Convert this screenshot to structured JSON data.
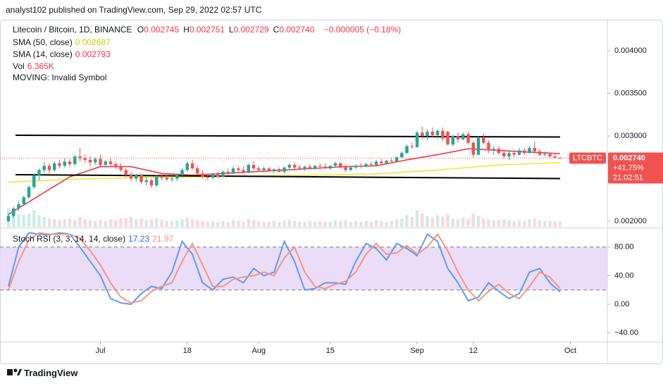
{
  "header": {
    "byline": "analyst102 published on TradingView.com, Sep 29, 2022 02:57 UTC"
  },
  "footer": {
    "brand": "TradingView"
  },
  "chart_data": [
    {
      "type": "candlestick",
      "title": "Litecoin / Bitcoin, 1D, BINANCE",
      "ohlc_legend": [
        {
          "key": "O",
          "value": "0.002745"
        },
        {
          "key": "H",
          "value": "0.002751"
        },
        {
          "key": "L",
          "value": "0.002729"
        },
        {
          "key": "C",
          "value": "0.002740"
        }
      ],
      "change": "−0.000005 (−0.18%)",
      "indicators": [
        {
          "name": "SMA (50, close)",
          "value": "0.002687"
        },
        {
          "name": "SMA (14, close)",
          "value": "0.002793"
        },
        {
          "name": "Vol",
          "value": "6.365K"
        },
        {
          "name": "MOVING: Invalid Symbol"
        }
      ],
      "badges": {
        "symbol": "LTCBTC",
        "price": "0.002740",
        "change": "+41.75%",
        "countdown": "21:02:51"
      },
      "up_color": "#26a69a",
      "down_color": "#ef5350",
      "open": [
        0.002,
        0.00206,
        0.00215,
        0.0022,
        0.00228,
        0.0024,
        0.00254,
        0.0026,
        0.00265,
        0.0026,
        0.00268,
        0.00265,
        0.0027,
        0.00267,
        0.00276,
        0.00274,
        0.00272,
        0.00269,
        0.00273,
        0.00266,
        0.0027,
        0.00267,
        0.00264,
        0.0026,
        0.00255,
        0.0025,
        0.00254,
        0.00246,
        0.00248,
        0.00242,
        0.00252,
        0.00251,
        0.00249,
        0.0025,
        0.00254,
        0.0026,
        0.00268,
        0.00262,
        0.00256,
        0.00252,
        0.00251,
        0.00255,
        0.00252,
        0.00258,
        0.00256,
        0.00262,
        0.0026,
        0.00258,
        0.00266,
        0.00262,
        0.0026,
        0.00262,
        0.00259,
        0.00261,
        0.00258,
        0.00263,
        0.00266,
        0.00263,
        0.00262,
        0.00264,
        0.00262,
        0.00265,
        0.00264,
        0.00262,
        0.00265,
        0.00268,
        0.00264,
        0.0026,
        0.00263,
        0.00265,
        0.00264,
        0.00267,
        0.00266,
        0.0027,
        0.00268,
        0.00271,
        0.0027,
        0.00275,
        0.0028,
        0.00288,
        0.00287,
        0.00304,
        0.003,
        0.00305,
        0.00301,
        0.00306,
        0.00305,
        0.0029,
        0.003,
        0.00296,
        0.00302,
        0.00292,
        0.00278,
        0.00298,
        0.00292,
        0.00283,
        0.00285,
        0.0028,
        0.00276,
        0.0028,
        0.00278,
        0.00283,
        0.0028,
        0.00286,
        0.00282,
        0.00278,
        0.00279,
        0.00276,
        0.002745
      ],
      "high": [
        0.00209,
        0.00217,
        0.00223,
        0.0023,
        0.00242,
        0.00256,
        0.00262,
        0.0027,
        0.00268,
        0.0027,
        0.00272,
        0.00274,
        0.00273,
        0.00278,
        0.00286,
        0.00278,
        0.00276,
        0.00275,
        0.00278,
        0.00272,
        0.00274,
        0.0027,
        0.00268,
        0.00262,
        0.00258,
        0.00256,
        0.00256,
        0.00252,
        0.0025,
        0.00254,
        0.00256,
        0.00254,
        0.00253,
        0.00256,
        0.00262,
        0.0027,
        0.00272,
        0.00265,
        0.0026,
        0.00256,
        0.00257,
        0.00258,
        0.0026,
        0.00262,
        0.00264,
        0.00265,
        0.00264,
        0.00268,
        0.0027,
        0.00265,
        0.00264,
        0.00264,
        0.00262,
        0.00263,
        0.00264,
        0.00268,
        0.00269,
        0.00266,
        0.00265,
        0.00267,
        0.00266,
        0.00268,
        0.00268,
        0.00266,
        0.0027,
        0.00269,
        0.00266,
        0.00265,
        0.00267,
        0.00268,
        0.00269,
        0.0027,
        0.00272,
        0.00273,
        0.00272,
        0.00274,
        0.00276,
        0.00282,
        0.0029,
        0.00292,
        0.00306,
        0.00311,
        0.00308,
        0.0031,
        0.00308,
        0.0031,
        0.00306,
        0.00302,
        0.00304,
        0.00304,
        0.00305,
        0.00294,
        0.003,
        0.00303,
        0.00295,
        0.00288,
        0.00288,
        0.00284,
        0.00282,
        0.00283,
        0.00286,
        0.00286,
        0.00288,
        0.00294,
        0.00285,
        0.00282,
        0.0028,
        0.00279,
        0.002751
      ],
      "low": [
        0.00199,
        0.00204,
        0.00212,
        0.00218,
        0.00226,
        0.00238,
        0.00248,
        0.00256,
        0.00256,
        0.00258,
        0.00262,
        0.00263,
        0.00264,
        0.00265,
        0.0027,
        0.00268,
        0.00265,
        0.00266,
        0.00263,
        0.00264,
        0.00265,
        0.00261,
        0.00258,
        0.00252,
        0.00247,
        0.00246,
        0.00244,
        0.00242,
        0.00239,
        0.0024,
        0.00248,
        0.00247,
        0.00246,
        0.00247,
        0.00251,
        0.00258,
        0.0026,
        0.00254,
        0.0025,
        0.00248,
        0.00249,
        0.0025,
        0.00251,
        0.00254,
        0.00255,
        0.00257,
        0.00256,
        0.00256,
        0.0026,
        0.00258,
        0.00257,
        0.00258,
        0.00256,
        0.00257,
        0.00256,
        0.0026,
        0.00261,
        0.0026,
        0.00259,
        0.00261,
        0.0026,
        0.00262,
        0.00261,
        0.0026,
        0.00263,
        0.00262,
        0.00258,
        0.00259,
        0.00261,
        0.00262,
        0.00263,
        0.00264,
        0.00265,
        0.00266,
        0.00267,
        0.00268,
        0.00269,
        0.00274,
        0.00279,
        0.00285,
        0.00286,
        0.00296,
        0.00295,
        0.00298,
        0.00296,
        0.00294,
        0.00289,
        0.00288,
        0.00292,
        0.00295,
        0.0029,
        0.00274,
        0.00277,
        0.0029,
        0.0028,
        0.00278,
        0.00278,
        0.00274,
        0.00272,
        0.00275,
        0.00277,
        0.00278,
        0.00279,
        0.0028,
        0.00276,
        0.00276,
        0.00274,
        0.00274,
        0.002729
      ],
      "close": [
        0.00206,
        0.00215,
        0.0022,
        0.00228,
        0.0024,
        0.00254,
        0.0026,
        0.00265,
        0.0026,
        0.00268,
        0.00265,
        0.0027,
        0.00267,
        0.00276,
        0.00274,
        0.00272,
        0.00269,
        0.00273,
        0.00266,
        0.0027,
        0.00267,
        0.00264,
        0.0026,
        0.00255,
        0.0025,
        0.00254,
        0.00246,
        0.00248,
        0.00242,
        0.00252,
        0.00251,
        0.00249,
        0.0025,
        0.00254,
        0.0026,
        0.00268,
        0.00262,
        0.00256,
        0.00252,
        0.00251,
        0.00255,
        0.00252,
        0.00258,
        0.00256,
        0.00262,
        0.0026,
        0.00258,
        0.00266,
        0.00262,
        0.0026,
        0.00262,
        0.00259,
        0.00261,
        0.00258,
        0.00263,
        0.00266,
        0.00263,
        0.00262,
        0.00264,
        0.00262,
        0.00265,
        0.00264,
        0.00262,
        0.00265,
        0.00268,
        0.00264,
        0.0026,
        0.00263,
        0.00265,
        0.00264,
        0.00267,
        0.00266,
        0.0027,
        0.00268,
        0.00271,
        0.0027,
        0.00275,
        0.0028,
        0.00288,
        0.00287,
        0.00304,
        0.003,
        0.00305,
        0.00301,
        0.00306,
        0.00297,
        0.0029,
        0.003,
        0.00296,
        0.00302,
        0.00292,
        0.00278,
        0.00298,
        0.00292,
        0.00283,
        0.00285,
        0.0028,
        0.00276,
        0.0028,
        0.00278,
        0.00283,
        0.0028,
        0.00286,
        0.00282,
        0.00278,
        0.00279,
        0.00276,
        0.002745,
        0.00274
      ],
      "volume": [
        22,
        18,
        15,
        14,
        16,
        20,
        14,
        12,
        10,
        9,
        8,
        9,
        10,
        8,
        12,
        9,
        8,
        7,
        8,
        7,
        9,
        8,
        10,
        11,
        12,
        9,
        10,
        8,
        9,
        10,
        8,
        7,
        7,
        8,
        9,
        11,
        9,
        8,
        7,
        6,
        7,
        6,
        7,
        6,
        8,
        7,
        6,
        9,
        8,
        7,
        6,
        6,
        7,
        6,
        7,
        8,
        7,
        6,
        6,
        7,
        6,
        7,
        6,
        6,
        8,
        7,
        8,
        6,
        7,
        6,
        7,
        6,
        8,
        7,
        6,
        7,
        9,
        10,
        14,
        12,
        20,
        16,
        13,
        11,
        14,
        12,
        15,
        10,
        9,
        11,
        9,
        16,
        13,
        10,
        9,
        8,
        8,
        9,
        8,
        7,
        8,
        7,
        9,
        10,
        8,
        7,
        7,
        6,
        6.365
      ],
      "series": [
        {
          "name": "SMA (50, close)",
          "color": "#f5e53b",
          "x": [
            0,
            12,
            24,
            36,
            48,
            60,
            72,
            84,
            96,
            108
          ],
          "values": [
            0.00246,
            0.00249,
            0.00251,
            0.00252,
            0.00253,
            0.00254,
            0.002555,
            0.0026,
            0.00266,
            0.002687
          ]
        },
        {
          "name": "SMA (14, close)",
          "color": "#f23645",
          "x": [
            0,
            6,
            12,
            18,
            24,
            30,
            36,
            42,
            48,
            54,
            60,
            66,
            72,
            78,
            84,
            90,
            96,
            102,
            108
          ],
          "values": [
            0.00208,
            0.0023,
            0.00252,
            0.00264,
            0.00264,
            0.00256,
            0.00254,
            0.00256,
            0.00258,
            0.0026,
            0.00262,
            0.00264,
            0.00265,
            0.00272,
            0.00278,
            0.00285,
            0.00283,
            0.00281,
            0.002793
          ]
        }
      ],
      "xlim": [
        -1.655,
        117.24
      ],
      "xticks": [
        {
          "value": 18,
          "label": "Jul"
        },
        {
          "value": 35,
          "label": "18"
        },
        {
          "value": 49,
          "label": "Aug"
        },
        {
          "value": 63,
          "label": "15"
        },
        {
          "value": 80,
          "label": "Sep"
        },
        {
          "value": 91,
          "label": "12"
        },
        {
          "value": 110,
          "label": "Oct"
        }
      ],
      "ylim": [
        0.001934,
        0.004364
      ],
      "yticks": [
        {
          "value": 0.004,
          "label": "0.004000"
        },
        {
          "value": 0.0035,
          "label": "0.003500"
        },
        {
          "value": 0.003,
          "label": "0.003000"
        },
        {
          "value": 0.002,
          "label": "0.002000"
        }
      ],
      "grid": false
    },
    {
      "type": "line",
      "title": "Stoch RSI (3, 3, 14, 14, close)",
      "series": [
        {
          "name": "K",
          "value_label": "17.23",
          "color": "#5b9cf6",
          "x": [
            0,
            2,
            4,
            6,
            8,
            10,
            12,
            14,
            16,
            18,
            20,
            22,
            24,
            26,
            28,
            30,
            32,
            34,
            36,
            38,
            40,
            42,
            44,
            46,
            48,
            50,
            52,
            54,
            56,
            58,
            60,
            62,
            64,
            66,
            68,
            70,
            72,
            74,
            76,
            78,
            80,
            82,
            84,
            86,
            88,
            90,
            92,
            94,
            96,
            98,
            100,
            102,
            104,
            106,
            108
          ],
          "values": [
            25,
            80,
            100,
            98,
            97,
            100,
            98,
            80,
            60,
            40,
            8,
            2,
            0,
            15,
            25,
            22,
            45,
            88,
            70,
            30,
            20,
            35,
            38,
            30,
            50,
            40,
            45,
            88,
            60,
            20,
            22,
            30,
            30,
            28,
            60,
            85,
            78,
            62,
            85,
            78,
            68,
            98,
            88,
            50,
            30,
            5,
            10,
            30,
            18,
            8,
            15,
            45,
            50,
            30,
            17.23
          ]
        },
        {
          "name": "D",
          "value_label": "21.97",
          "color": "#f7967a",
          "x": [
            0,
            2,
            4,
            6,
            8,
            10,
            12,
            14,
            16,
            18,
            20,
            22,
            24,
            26,
            28,
            30,
            32,
            34,
            36,
            38,
            40,
            42,
            44,
            46,
            48,
            50,
            52,
            54,
            56,
            58,
            60,
            62,
            64,
            66,
            68,
            70,
            72,
            74,
            76,
            78,
            80,
            82,
            84,
            86,
            88,
            90,
            92,
            94,
            96,
            98,
            100,
            102,
            104,
            106,
            108
          ],
          "values": [
            20,
            60,
            90,
            100,
            98,
            98,
            98,
            92,
            75,
            55,
            30,
            10,
            2,
            5,
            18,
            25,
            30,
            60,
            85,
            55,
            25,
            25,
            35,
            38,
            40,
            45,
            40,
            65,
            80,
            45,
            25,
            22,
            28,
            32,
            45,
            70,
            85,
            70,
            72,
            82,
            70,
            80,
            98,
            75,
            45,
            20,
            5,
            18,
            28,
            15,
            8,
            25,
            45,
            38,
            21.97
          ]
        }
      ],
      "bands": [
        20,
        80
      ],
      "band_color": "#e7d6f7",
      "xlim": [
        -1.655,
        117.24
      ],
      "ylim": [
        -52.2,
        105.4
      ],
      "yticks": [
        {
          "value": 80,
          "label": "80.00"
        },
        {
          "value": 40,
          "label": "40.00"
        },
        {
          "value": 0,
          "label": "0.00"
        },
        {
          "value": -40,
          "label": "−40.00"
        }
      ]
    }
  ]
}
